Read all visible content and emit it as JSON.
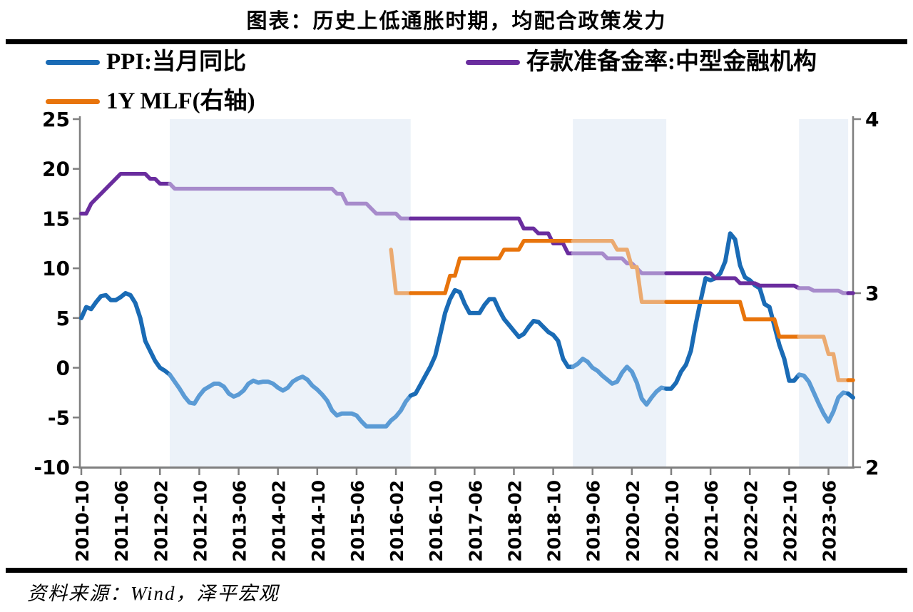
{
  "title": "图表：历史上低通胀时期，均配合政策发力",
  "source_note": "资料来源：Wind，泽平宏观",
  "colors": {
    "band": "#ECF2F9",
    "axis": "#7F7F7F",
    "text": "#000000",
    "ppi_dark": "#1A6BB5",
    "ppi_light": "#5B9BD5",
    "rrr_dark": "#6A2D9E",
    "rrr_light": "#A78BCB",
    "mlf_dark": "#E8740B",
    "mlf_light": "#EBAA70"
  },
  "legend": [
    {
      "label": "PPI:当月同比",
      "color_key": "ppi_dark"
    },
    {
      "label": "存款准备金率:中型金融机构",
      "color_key": "rrr_dark"
    },
    {
      "label": "1Y MLF(右轴)",
      "color_key": "mlf_dark"
    }
  ],
  "chart_data": {
    "type": "line",
    "x_monthly_range": [
      "2010-10",
      "2023-11"
    ],
    "x_tick_labels": [
      "2010-10",
      "2011-06",
      "2012-02",
      "2012-10",
      "2013-06",
      "2014-02",
      "2014-10",
      "2015-06",
      "2016-02",
      "2016-10",
      "2017-06",
      "2018-02",
      "2018-10",
      "2019-06",
      "2020-02",
      "2020-10",
      "2021-06",
      "2022-02",
      "2022-10",
      "2023-06"
    ],
    "x_tick_interval_months": 8,
    "left_axis": {
      "range": [
        -10,
        25
      ],
      "ticks": [
        25,
        20,
        15,
        10,
        5,
        0,
        -5,
        -10
      ]
    },
    "right_axis": {
      "range": [
        2,
        4
      ],
      "ticks": [
        4,
        3,
        2
      ]
    },
    "grid": false,
    "highlight_bands": [
      {
        "from": "2012-04",
        "to": "2016-05"
      },
      {
        "from": "2019-02",
        "to": "2020-09"
      },
      {
        "from": "2022-12",
        "to": "2023-10"
      }
    ],
    "series": [
      {
        "name": "PPI:当月同比",
        "axis": "left",
        "start": "2010-10",
        "color_key": "ppi_dark",
        "band_color_key": "ppi_light",
        "stroke_width": 6,
        "values": [
          5.0,
          6.1,
          5.9,
          6.6,
          7.2,
          7.3,
          6.8,
          6.8,
          7.1,
          7.5,
          7.3,
          6.5,
          5.0,
          2.7,
          1.7,
          0.7,
          0.0,
          -0.3,
          -0.7,
          -1.4,
          -2.1,
          -2.9,
          -3.5,
          -3.6,
          -2.8,
          -2.2,
          -1.9,
          -1.6,
          -1.6,
          -1.9,
          -2.6,
          -2.9,
          -2.7,
          -2.3,
          -1.6,
          -1.3,
          -1.5,
          -1.4,
          -1.4,
          -1.6,
          -2.0,
          -2.3,
          -2.0,
          -1.4,
          -1.1,
          -0.9,
          -1.2,
          -1.8,
          -2.2,
          -2.7,
          -3.3,
          -4.3,
          -4.8,
          -4.6,
          -4.6,
          -4.6,
          -4.8,
          -5.4,
          -5.9,
          -5.9,
          -5.9,
          -5.9,
          -5.9,
          -5.3,
          -4.9,
          -4.3,
          -3.4,
          -2.8,
          -2.6,
          -1.7,
          -0.8,
          0.1,
          1.2,
          3.3,
          5.5,
          6.9,
          7.8,
          7.6,
          6.4,
          5.5,
          5.5,
          5.5,
          6.3,
          6.9,
          6.9,
          5.8,
          4.9,
          4.3,
          3.7,
          3.1,
          3.4,
          4.1,
          4.7,
          4.6,
          4.1,
          3.6,
          3.3,
          2.7,
          0.9,
          0.1,
          0.1,
          0.4,
          0.9,
          0.6,
          0.0,
          -0.3,
          -0.8,
          -1.2,
          -1.6,
          -1.4,
          -0.5,
          0.1,
          -0.4,
          -1.5,
          -3.1,
          -3.7,
          -3.0,
          -2.4,
          -2.0,
          -2.1,
          -2.1,
          -1.5,
          -0.4,
          0.3,
          1.7,
          4.4,
          6.8,
          9.0,
          8.8,
          9.0,
          9.5,
          10.7,
          13.5,
          12.9,
          10.3,
          9.1,
          8.8,
          8.3,
          8.0,
          6.4,
          6.1,
          4.2,
          2.3,
          0.9,
          -1.3,
          -1.3,
          -0.7,
          -0.8,
          -1.4,
          -2.5,
          -3.6,
          -4.6,
          -5.4,
          -4.4,
          -3.0,
          -2.5,
          -2.6,
          -3.0
        ]
      },
      {
        "name": "存款准备金率:中型金融机构",
        "axis": "left",
        "start": "2010-10",
        "color_key": "rrr_dark",
        "band_color_key": "rrr_light",
        "stroke_width": 5.5,
        "values": [
          15.5,
          15.5,
          16.5,
          17.0,
          17.5,
          18.0,
          18.5,
          19.0,
          19.5,
          19.5,
          19.5,
          19.5,
          19.5,
          19.5,
          19.0,
          19.0,
          18.5,
          18.5,
          18.5,
          18.0,
          18.0,
          18.0,
          18.0,
          18.0,
          18.0,
          18.0,
          18.0,
          18.0,
          18.0,
          18.0,
          18.0,
          18.0,
          18.0,
          18.0,
          18.0,
          18.0,
          18.0,
          18.0,
          18.0,
          18.0,
          18.0,
          18.0,
          18.0,
          18.0,
          18.0,
          18.0,
          18.0,
          18.0,
          18.0,
          18.0,
          18.0,
          18.0,
          17.5,
          17.5,
          16.5,
          16.5,
          16.5,
          16.5,
          16.5,
          16.0,
          15.5,
          15.5,
          15.5,
          15.5,
          15.5,
          15.0,
          15.0,
          15.0,
          15.0,
          15.0,
          15.0,
          15.0,
          15.0,
          15.0,
          15.0,
          15.0,
          15.0,
          15.0,
          15.0,
          15.0,
          15.0,
          15.0,
          15.0,
          15.0,
          15.0,
          15.0,
          15.0,
          15.0,
          15.0,
          15.0,
          14.0,
          14.0,
          14.0,
          13.5,
          13.5,
          13.5,
          12.5,
          12.5,
          12.5,
          11.5,
          11.5,
          11.5,
          11.5,
          11.5,
          11.5,
          11.5,
          11.5,
          11.0,
          11.0,
          11.0,
          11.0,
          10.5,
          10.5,
          10.0,
          9.5,
          9.5,
          9.5,
          9.5,
          9.5,
          9.5,
          9.5,
          9.5,
          9.5,
          9.5,
          9.5,
          9.5,
          9.5,
          9.5,
          9.5,
          9.0,
          9.0,
          9.0,
          9.0,
          9.0,
          8.5,
          8.5,
          8.5,
          8.5,
          8.25,
          8.25,
          8.25,
          8.25,
          8.25,
          8.25,
          8.25,
          8.25,
          8.0,
          8.0,
          8.0,
          7.75,
          7.75,
          7.75,
          7.75,
          7.75,
          7.75,
          7.5,
          7.5,
          7.5
        ]
      },
      {
        "name": "1Y MLF(右轴)",
        "axis": "right",
        "start": "2016-01",
        "color_key": "mlf_dark",
        "band_color_key": "mlf_light",
        "stroke_width": 5.5,
        "values": [
          3.25,
          3.0,
          3.0,
          3.0,
          3.0,
          3.0,
          3.0,
          3.0,
          3.0,
          3.0,
          3.0,
          3.0,
          3.1,
          3.1,
          3.2,
          3.2,
          3.2,
          3.2,
          3.2,
          3.2,
          3.2,
          3.2,
          3.2,
          3.25,
          3.25,
          3.25,
          3.25,
          3.3,
          3.3,
          3.3,
          3.3,
          3.3,
          3.3,
          3.3,
          3.3,
          3.3,
          3.3,
          3.3,
          3.3,
          3.3,
          3.3,
          3.3,
          3.3,
          3.3,
          3.3,
          3.3,
          3.25,
          3.25,
          3.25,
          3.15,
          3.15,
          2.95,
          2.95,
          2.95,
          2.95,
          2.95,
          2.95,
          2.95,
          2.95,
          2.95,
          2.95,
          2.95,
          2.95,
          2.95,
          2.95,
          2.95,
          2.95,
          2.95,
          2.95,
          2.95,
          2.95,
          2.95,
          2.85,
          2.85,
          2.85,
          2.85,
          2.85,
          2.85,
          2.85,
          2.75,
          2.75,
          2.75,
          2.75,
          2.75,
          2.75,
          2.75,
          2.75,
          2.75,
          2.75,
          2.65,
          2.65,
          2.5,
          2.5,
          2.5,
          2.5
        ]
      }
    ]
  }
}
